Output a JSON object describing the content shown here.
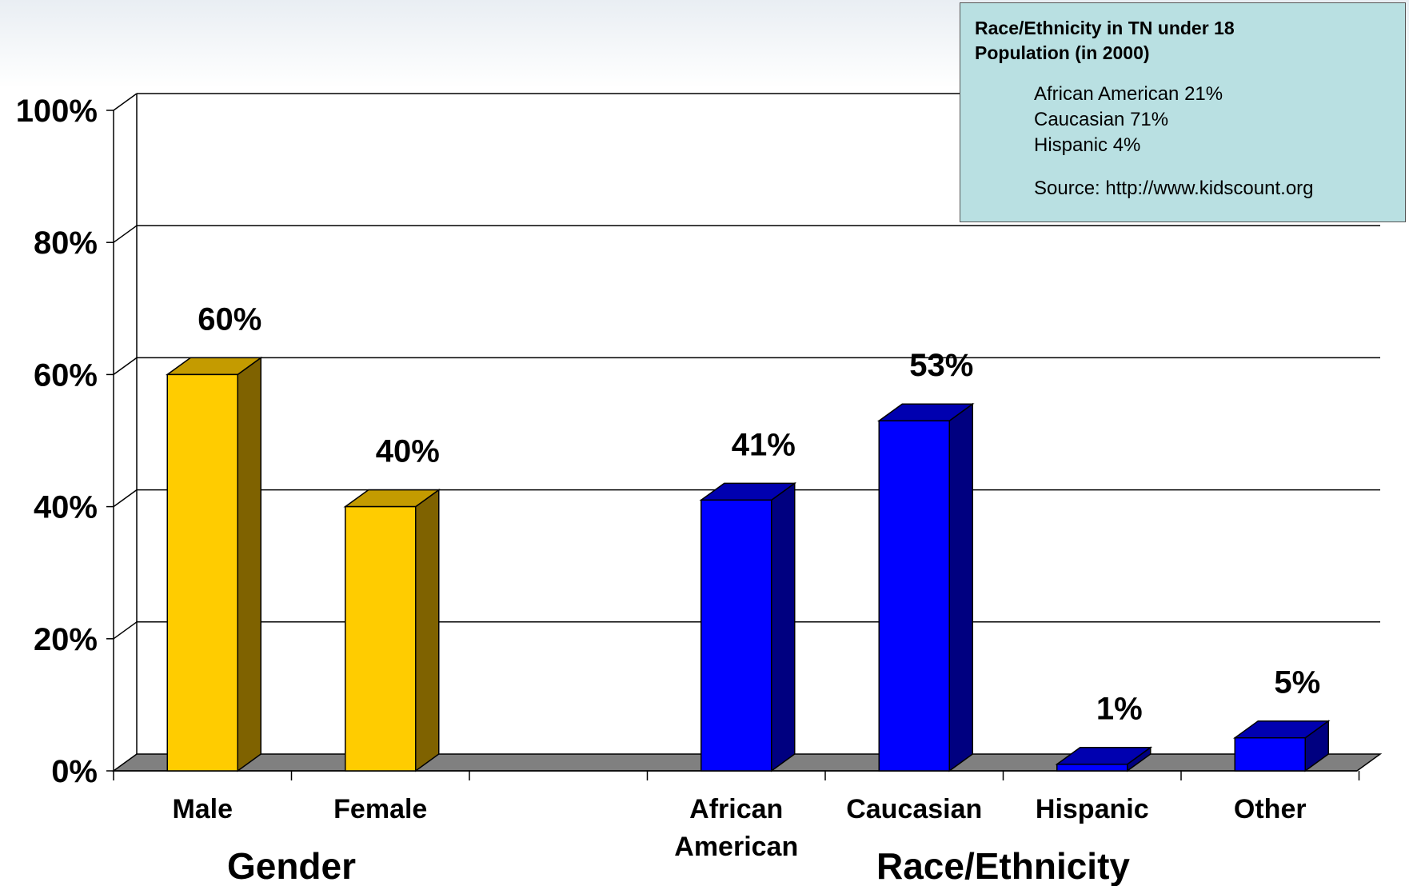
{
  "chart_data": {
    "type": "bar",
    "style": "3d-column",
    "y_ticks": [
      "0%",
      "20%",
      "40%",
      "60%",
      "80%",
      "100%"
    ],
    "ylim": [
      0,
      100
    ],
    "grid": true,
    "categories": [
      {
        "label": "Male",
        "value": 60,
        "value_label": "60%",
        "group": "Gender",
        "color": "#ffcc00"
      },
      {
        "label": "Female",
        "value": 40,
        "value_label": "40%",
        "group": "Gender",
        "color": "#ffcc00"
      },
      {
        "label": "",
        "value": null,
        "value_label": "",
        "group": "",
        "color": ""
      },
      {
        "label": "African American",
        "value": 41,
        "value_label": "41%",
        "group": "Race/Ethnicity",
        "color": "#0000ff"
      },
      {
        "label": "Caucasian",
        "value": 53,
        "value_label": "53%",
        "group": "Race/Ethnicity",
        "color": "#0000ff"
      },
      {
        "label": "Hispanic",
        "value": 1,
        "value_label": "1%",
        "group": "Race/Ethnicity",
        "color": "#0000ff"
      },
      {
        "label": "Other",
        "value": 5,
        "value_label": "5%",
        "group": "Race/Ethnicity",
        "color": "#0000ff"
      }
    ],
    "groups": [
      "Gender",
      "Race/Ethnicity"
    ],
    "colors": {
      "gender_front": "#ffcc00",
      "gender_top": "#c49b00",
      "gender_side": "#7f6200",
      "race_front": "#0000ff",
      "race_top": "#0000b0",
      "race_side": "#000080",
      "floor": "#808080"
    }
  },
  "info_box": {
    "title": "Race/Ethnicity in TN under 18 Population (in 2000)",
    "lines": [
      "African American 21%",
      "Caucasian 71%",
      "Hispanic 4%"
    ],
    "source": "Source: http://www.kidscount.org",
    "background": "#b9e0e2"
  }
}
